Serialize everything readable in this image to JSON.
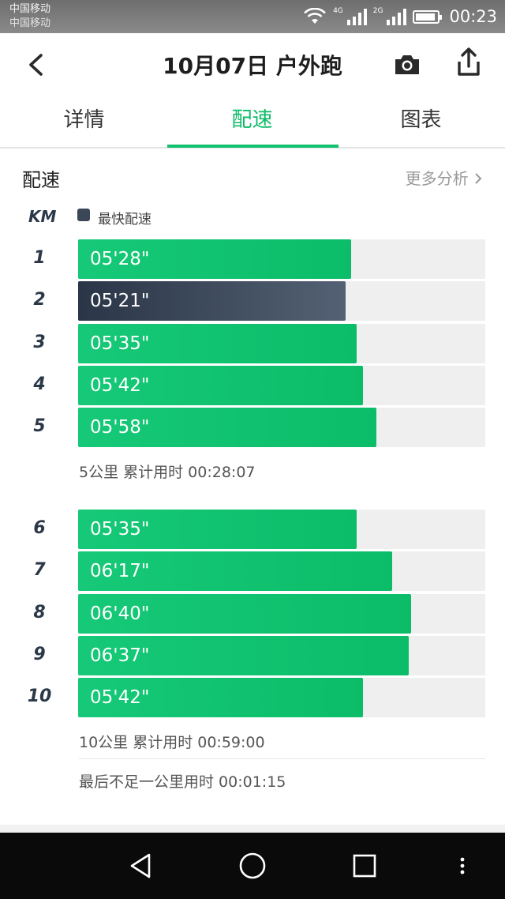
{
  "status_bar": {
    "carrier_1": "中国移动",
    "carrier_2": "中国移动",
    "net_1": "4G",
    "net_2": "2G",
    "time": "00:23",
    "icons": [
      "wifi-icon",
      "signal-icon",
      "signal-icon",
      "battery-icon"
    ]
  },
  "header": {
    "title": "10月07日 户外跑",
    "icons": [
      "back-icon",
      "camera-icon",
      "share-icon"
    ]
  },
  "tabs": [
    {
      "label": "详情",
      "active": false
    },
    {
      "label": "配速",
      "active": true
    },
    {
      "label": "图表",
      "active": false
    }
  ],
  "section": {
    "title": "配速",
    "more_link": "更多分析",
    "km_header": "KM",
    "legend_label": "最快配速"
  },
  "colors": {
    "accent": "#12c16f",
    "fastest": "#3b4657",
    "track": "#efefef"
  },
  "pace_chart": {
    "scale_max_seconds": 489,
    "rows": [
      {
        "km": "1",
        "pace": "05'28\"",
        "seconds": 328,
        "fastest": false
      },
      {
        "km": "2",
        "pace": "05'21\"",
        "seconds": 321,
        "fastest": true
      },
      {
        "km": "3",
        "pace": "05'35\"",
        "seconds": 335,
        "fastest": false
      },
      {
        "km": "4",
        "pace": "05'42\"",
        "seconds": 342,
        "fastest": false
      },
      {
        "km": "5",
        "pace": "05'58\"",
        "seconds": 358,
        "fastest": false
      },
      {
        "km": "6",
        "pace": "05'35\"",
        "seconds": 335,
        "fastest": false
      },
      {
        "km": "7",
        "pace": "06'17\"",
        "seconds": 377,
        "fastest": false
      },
      {
        "km": "8",
        "pace": "06'40\"",
        "seconds": 400,
        "fastest": false
      },
      {
        "km": "9",
        "pace": "06'37\"",
        "seconds": 397,
        "fastest": false
      },
      {
        "km": "10",
        "pace": "05'42\"",
        "seconds": 342,
        "fastest": false
      }
    ]
  },
  "summaries": {
    "five_km": "5公里 累计用时 00:28:07",
    "ten_km": "10公里 累计用时 00:59:00",
    "remainder": "最后不足一公里用时 00:01:15"
  },
  "nav_bar": {
    "icons": [
      "nav-back-icon",
      "nav-home-icon",
      "nav-recents-icon",
      "nav-menu-icon"
    ]
  }
}
